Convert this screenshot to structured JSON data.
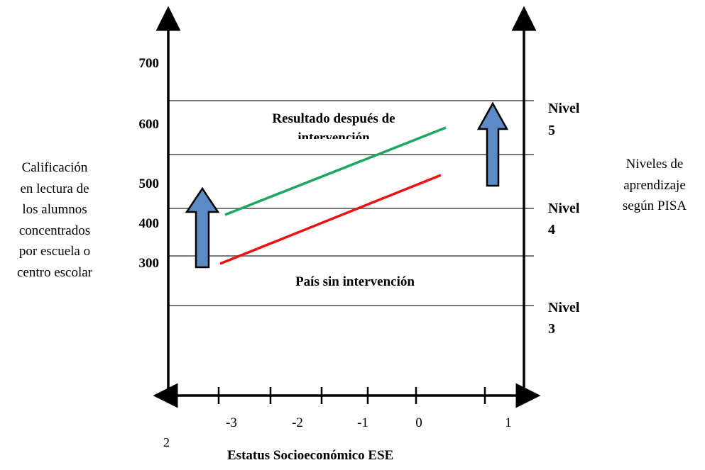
{
  "chart_data": {
    "type": "line",
    "xlabel": "Estatus Socioeconómico ESE",
    "ylabel_left": [
      "Calificación",
      "en lectura de",
      "los alumnos",
      "concentrados",
      "por escuela o",
      "centro escolar"
    ],
    "ylabel_right": [
      "Niveles de",
      "aprendizaje",
      "según PISA"
    ],
    "x_ticks": [
      "-3",
      "-2",
      "-1",
      "0",
      "1"
    ],
    "y_ticks": [
      "300",
      "400",
      "500",
      "600",
      "700"
    ],
    "levels": [
      {
        "line1": "Nivel",
        "line2": "5"
      },
      {
        "line1": "Nivel",
        "line2": "4"
      },
      {
        "line1": "Nivel",
        "line2": "3"
      }
    ],
    "annotations": {
      "after": "Resultado después de intervención",
      "without": "País sin intervención"
    },
    "stray_label": "2",
    "series": [
      {
        "color": "#1aa860",
        "x": [
          -3,
          0.3
        ],
        "y": [
          410,
          590
        ]
      },
      {
        "color": "#ee1111",
        "x": [
          -3,
          0.3
        ],
        "y": [
          295,
          505
        ]
      }
    ],
    "arrow_color": "#5b8ac6"
  }
}
